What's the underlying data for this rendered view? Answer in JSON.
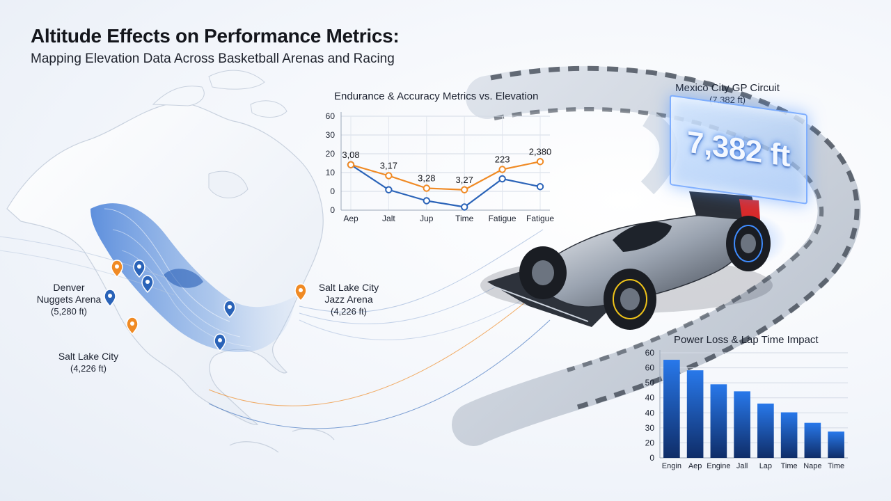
{
  "header": {
    "title": "Altitude Effects on Performance Metrics:",
    "subtitle": "Mapping Elevation Data Across Basketball Arenas and Racing"
  },
  "map_labels": [
    {
      "name_lines": [
        "Denver",
        "Nuggets Arena"
      ],
      "elevation": "(5,280 ft)"
    },
    {
      "name_lines": [
        "Salt Lake City"
      ],
      "elevation": "(4,226 ft)"
    },
    {
      "name_lines": [
        "Salt Lake City",
        "Jazz Arena"
      ],
      "elevation": "(4,226 ft)"
    }
  ],
  "mexico": {
    "name": "Mexico City GP Circuit",
    "elevation": "(7,382 ft)",
    "badge": "7,382 ft"
  },
  "colors": {
    "orange": "#f08a24",
    "blue": "#2a63b8",
    "bar_top": "#1f6fe0",
    "bar_bottom": "#0e2a63"
  },
  "chart_data": [
    {
      "type": "line",
      "title": "Endurance & Accuracy Metrics vs. Elevation",
      "categories": [
        "Aep",
        "Jalt",
        "Jup",
        "Time",
        "Fatigue",
        "Fatigue"
      ],
      "ylim": [
        0,
        60
      ],
      "yticks": [
        "0",
        "0",
        "10",
        "20",
        "30",
        "60"
      ],
      "grid": true,
      "series": [
        {
          "color": "orange",
          "values": [
            29,
            22,
            14,
            13,
            26,
            31
          ],
          "labels": [
            "3,08",
            "3,17",
            "3,28",
            "3,27",
            "223",
            "2,380"
          ]
        },
        {
          "color": "blue",
          "values": [
            29,
            13,
            6,
            2,
            20,
            15
          ],
          "labels": []
        }
      ]
    },
    {
      "type": "bar",
      "title": "Power Loss & Lap Time Impact",
      "categories": [
        "Engin",
        "Aep",
        "Engine",
        "Jall",
        "Lap",
        "Time",
        "Nape",
        "Time"
      ],
      "values": [
        56,
        50,
        42,
        38,
        31,
        26,
        20,
        15
      ],
      "ylim": [
        0,
        60
      ],
      "yticks": [
        "0",
        "20",
        "30",
        "40",
        "40",
        "50",
        "60",
        "60"
      ],
      "grid": true
    }
  ]
}
